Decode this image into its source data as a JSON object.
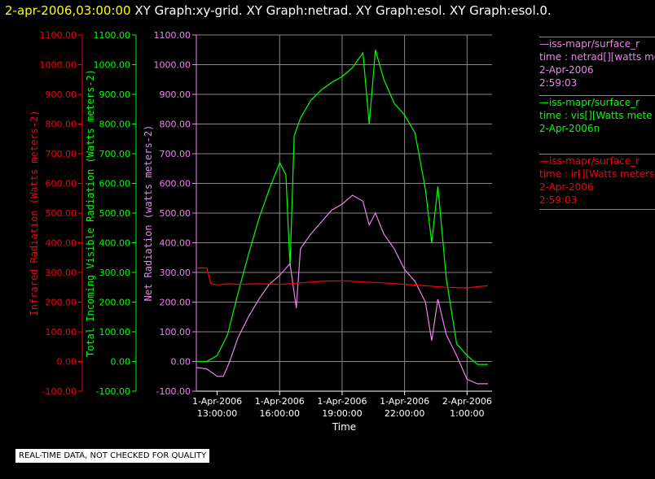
{
  "title": {
    "datetime": "2-apr-2006,03:00:00",
    "rest": "  XY Graph:xy-grid.  XY Graph:netrad.  XY Graph:esol.  XY Graph:esol.0."
  },
  "colors": {
    "ir": "#ff0000",
    "vis": "#00ff00",
    "netrad": "#ee82ee",
    "grid": "#888888",
    "datetime": "#ffff00",
    "text": "#ffffff"
  },
  "legend": {
    "netrad": {
      "line1": "—iss-mapr/surface_r",
      "line2": "time : netrad[][watts me",
      "line3": "2-Apr-2006",
      "line4": "2:59:03"
    },
    "vis": {
      "line1": "—iss-mapr/surface_r",
      "line2": "time : vis[][Watts mete",
      "line3": "2-Apr-2006n"
    },
    "ir": {
      "line1": "—iss-mapr/surface_r",
      "line2": "time : ir[][Watts meters",
      "line3": "2-Apr-2006",
      "line4": "2:59:03"
    }
  },
  "notice": "REAL-TIME DATA, NOT CHECKED FOR QUALITY",
  "chart_data": {
    "type": "line",
    "xlabel": "Time",
    "x_ticks": [
      {
        "hour": 13,
        "line1": "1-Apr-2006",
        "line2": "13:00:00"
      },
      {
        "hour": 16,
        "line1": "1-Apr-2006",
        "line2": "16:00:00"
      },
      {
        "hour": 19,
        "line1": "1-Apr-2006",
        "line2": "19:00:00"
      },
      {
        "hour": 22,
        "line1": "1-Apr-2006",
        "line2": "22:00:00"
      },
      {
        "hour": 25,
        "line1": "2-Apr-2006",
        "line2": "1:00:00"
      }
    ],
    "x_unit_note": "x values are hours of 1-Apr-2006 (25 = 2-Apr-2006 1:00:00)",
    "xlim": [
      12,
      26.2
    ],
    "ylim": [
      -100,
      1100
    ],
    "y_ticks": [
      "-100.00",
      "0.00",
      "100.00",
      "200.00",
      "300.00",
      "400.00",
      "500.00",
      "600.00",
      "700.00",
      "800.00",
      "900.00",
      "1000.00",
      "1100.00"
    ],
    "axes": [
      {
        "id": "ir",
        "label": "Infrared Radiation (Watts meters-2)",
        "color": "#ff0000"
      },
      {
        "id": "vis",
        "label": "Total Incoming Visible Radiation (Watts meters-2)",
        "color": "#00ff00"
      },
      {
        "id": "netrad",
        "label": "Net Radiation (watts meters-2)",
        "color": "#ee82ee"
      }
    ],
    "grid": true,
    "series": [
      {
        "id": "vis",
        "color": "#00ff00",
        "x": [
          12.0,
          12.5,
          13.0,
          13.5,
          14.0,
          14.5,
          15.0,
          15.5,
          16.0,
          16.3,
          16.5,
          16.7,
          17.0,
          17.5,
          18.0,
          18.5,
          19.0,
          19.5,
          20.0,
          20.3,
          20.6,
          21.0,
          21.5,
          22.0,
          22.5,
          23.0,
          23.3,
          23.6,
          24.0,
          24.5,
          25.0,
          25.5,
          26.0
        ],
        "y": [
          0,
          0,
          20,
          90,
          230,
          360,
          480,
          580,
          670,
          630,
          320,
          760,
          820,
          880,
          915,
          940,
          960,
          990,
          1040,
          800,
          1050,
          950,
          870,
          830,
          770,
          580,
          400,
          590,
          280,
          60,
          20,
          -10,
          -10
        ]
      },
      {
        "id": "netrad",
        "color": "#ee82ee",
        "x": [
          12.0,
          12.5,
          13.0,
          13.3,
          13.6,
          14.0,
          14.5,
          15.0,
          15.5,
          16.0,
          16.5,
          16.8,
          17.0,
          17.5,
          18.0,
          18.5,
          19.0,
          19.5,
          20.0,
          20.3,
          20.6,
          21.0,
          21.5,
          22.0,
          22.5,
          23.0,
          23.3,
          23.6,
          24.0,
          24.5,
          25.0,
          25.5,
          26.0
        ],
        "y": [
          -20,
          -25,
          -50,
          -50,
          0,
          80,
          150,
          210,
          260,
          290,
          330,
          180,
          380,
          430,
          470,
          510,
          530,
          560,
          540,
          460,
          500,
          430,
          380,
          310,
          270,
          200,
          70,
          210,
          90,
          20,
          -60,
          -75,
          -75
        ]
      },
      {
        "id": "ir",
        "color": "#ff0000",
        "x": [
          12.0,
          12.5,
          12.7,
          13.0,
          13.5,
          14.0,
          15.0,
          16.0,
          17.0,
          18.0,
          19.0,
          20.0,
          21.0,
          22.0,
          23.0,
          24.0,
          25.0,
          25.5,
          26.0
        ],
        "y": [
          315,
          315,
          262,
          258,
          262,
          260,
          262,
          260,
          265,
          270,
          272,
          268,
          265,
          260,
          255,
          250,
          248,
          252,
          255
        ]
      }
    ]
  }
}
